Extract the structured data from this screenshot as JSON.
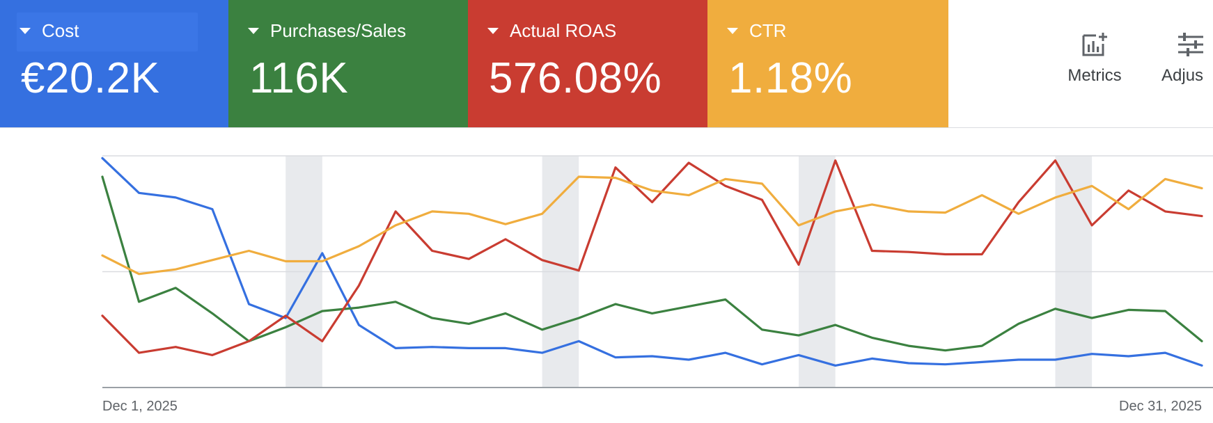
{
  "cards": [
    {
      "label": "Cost",
      "value": "€20.2K",
      "color": "#3570e0"
    },
    {
      "label": "Purchases/Sales",
      "value": "116K",
      "color": "#3b8140"
    },
    {
      "label": "Actual ROAS",
      "value": "576.08%",
      "color": "#c93c31"
    },
    {
      "label": "CTR",
      "value": "1.18%",
      "color": "#f0ad3e"
    }
  ],
  "toolbar": {
    "metrics_label": "Metrics",
    "adjust_label": "Adjus",
    "metrics_icon": "metrics-chart-plus-icon",
    "adjust_icon": "tune-sliders-icon"
  },
  "chart_data": {
    "type": "line",
    "x_start_label": "Dec 1, 2025",
    "x_end_label": "Dec 31, 2025",
    "x": [
      1,
      2,
      3,
      4,
      5,
      6,
      7,
      8,
      9,
      10,
      11,
      12,
      13,
      14,
      15,
      16,
      17,
      18,
      19,
      20,
      21,
      22,
      23,
      24,
      25,
      26,
      27,
      28,
      29,
      30,
      31
    ],
    "ylim": [
      0,
      1
    ],
    "gridlines": [
      0,
      0.5,
      1
    ],
    "weekend_bands": [
      [
        6,
        7
      ],
      [
        13,
        14
      ],
      [
        20,
        21
      ],
      [
        27,
        28
      ]
    ],
    "y_axis_labels": "none",
    "series": [
      {
        "color": "#3570e0",
        "values": [
          0.99,
          0.84,
          0.82,
          0.77,
          0.36,
          0.3,
          0.58,
          0.27,
          0.17,
          0.175,
          0.17,
          0.17,
          0.15,
          0.2,
          0.13,
          0.135,
          0.12,
          0.15,
          0.1,
          0.14,
          0.095,
          0.125,
          0.105,
          0.1,
          0.11,
          0.12,
          0.12,
          0.145,
          0.135,
          0.15,
          0.095
        ]
      },
      {
        "color": "#3b8140",
        "values": [
          0.91,
          0.37,
          0.43,
          0.32,
          0.2,
          0.26,
          0.33,
          0.345,
          0.37,
          0.3,
          0.275,
          0.32,
          0.25,
          0.3,
          0.36,
          0.32,
          0.35,
          0.38,
          0.25,
          0.225,
          0.27,
          0.215,
          0.18,
          0.16,
          0.18,
          0.275,
          0.34,
          0.3,
          0.335,
          0.33,
          0.2
        ]
      },
      {
        "color": "#c93c31",
        "values": [
          0.31,
          0.15,
          0.175,
          0.14,
          0.2,
          0.31,
          0.2,
          0.44,
          0.76,
          0.59,
          0.555,
          0.64,
          0.55,
          0.505,
          0.95,
          0.8,
          0.97,
          0.87,
          0.81,
          0.53,
          0.98,
          0.59,
          0.585,
          0.575,
          0.575,
          0.8,
          0.98,
          0.7,
          0.85,
          0.76,
          0.74
        ]
      },
      {
        "color": "#f0ad3e",
        "values": [
          0.57,
          0.49,
          0.51,
          0.55,
          0.59,
          0.545,
          0.545,
          0.61,
          0.7,
          0.76,
          0.75,
          0.705,
          0.75,
          0.91,
          0.905,
          0.85,
          0.83,
          0.9,
          0.88,
          0.7,
          0.76,
          0.79,
          0.76,
          0.755,
          0.83,
          0.75,
          0.82,
          0.87,
          0.77,
          0.9,
          0.86
        ]
      }
    ]
  }
}
